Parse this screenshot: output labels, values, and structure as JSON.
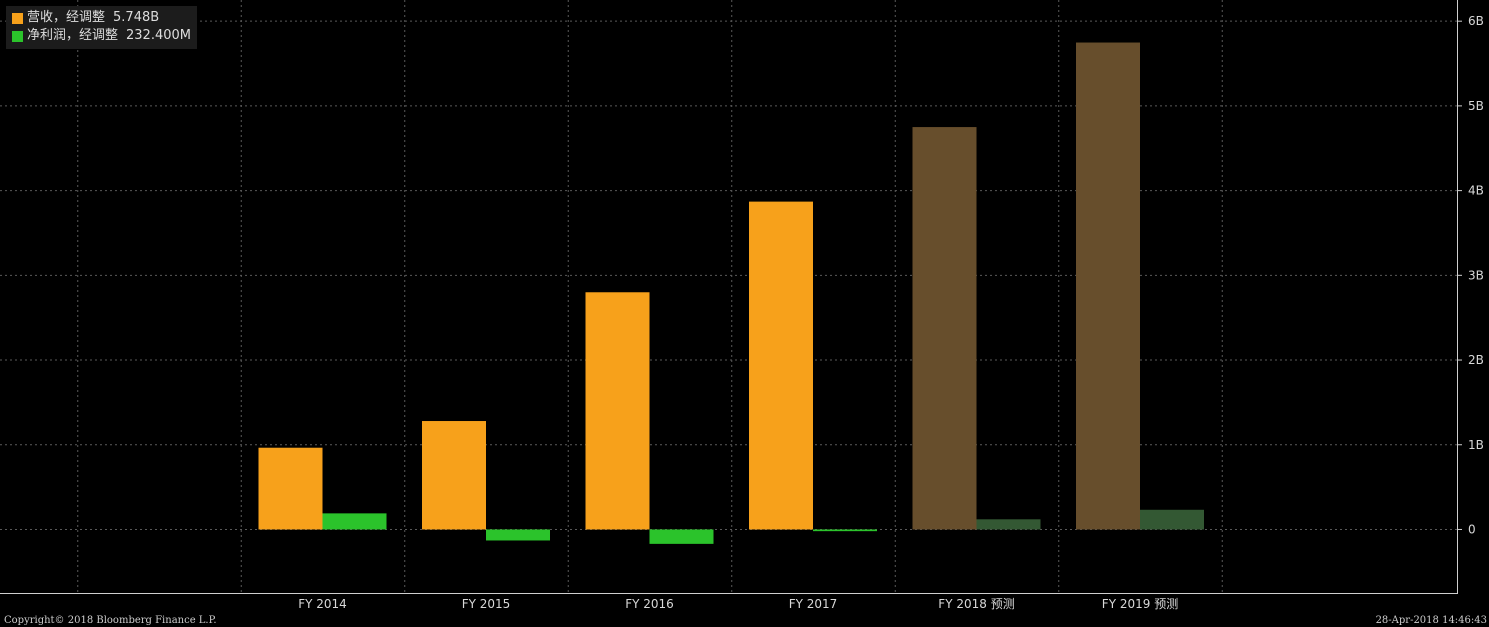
{
  "legend": {
    "items": [
      {
        "label": "营收，经调整",
        "value": "5.748B",
        "color": "#f7a11b"
      },
      {
        "label": "净利润，经调整",
        "value": "232.400M",
        "color": "#2bc32b"
      }
    ]
  },
  "footer": {
    "copyright": "Copyright© 2018 Bloomberg Finance L.P.",
    "timestamp": "28-Apr-2018 14:46:43"
  },
  "chart_data": {
    "type": "bar",
    "categories": [
      "FY 2014",
      "FY 2015",
      "FY 2016",
      "FY 2017",
      "FY 2018 预测",
      "FY 2019 预测"
    ],
    "series": [
      {
        "name": "营收，经调整",
        "values": [
          0.965,
          1.28,
          2.8,
          3.87,
          4.75,
          5.748
        ],
        "color": "#f7a11b",
        "forecast_color": "#674e2c"
      },
      {
        "name": "净利润，经调整",
        "values": [
          0.19,
          -0.13,
          -0.17,
          -0.02,
          0.12,
          0.2324
        ],
        "color": "#2bc32b",
        "forecast_color": "#335833"
      }
    ],
    "forecast_from_index": 4,
    "yticks": [
      0,
      1,
      2,
      3,
      4,
      5,
      6
    ],
    "ytick_labels": [
      "0",
      "1B",
      "2B",
      "3B",
      "4B",
      "5B",
      "6B"
    ],
    "ylim": [
      -0.75,
      6.25
    ],
    "grid": true
  }
}
